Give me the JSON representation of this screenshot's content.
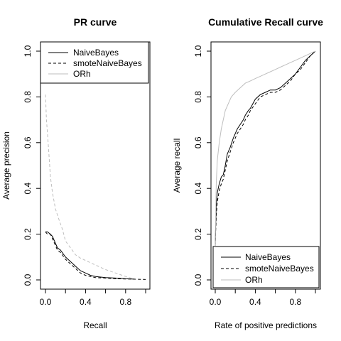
{
  "chart_data": [
    {
      "type": "line",
      "title": "PR curve",
      "xlabel": "Recall",
      "ylabel": "Average precision",
      "xlim": [
        0,
        1
      ],
      "ylim": [
        0,
        1
      ],
      "xticks": [
        "0.0",
        "0.4",
        "0.8"
      ],
      "yticks": [
        "0.0",
        "0.2",
        "0.4",
        "0.6",
        "0.8",
        "1.0"
      ],
      "grid": false,
      "legend_position": "top",
      "series": [
        {
          "name": "NaiveBayes",
          "color": "#000000",
          "dash": "solid",
          "x": [
            0.0,
            0.02,
            0.05,
            0.07,
            0.09,
            0.1,
            0.12,
            0.15,
            0.2,
            0.25,
            0.3,
            0.35,
            0.4,
            0.45,
            0.5,
            0.6,
            0.7,
            0.8,
            0.9
          ],
          "y": [
            0.21,
            0.21,
            0.2,
            0.19,
            0.17,
            0.16,
            0.14,
            0.13,
            0.1,
            0.08,
            0.06,
            0.04,
            0.03,
            0.02,
            0.015,
            0.01,
            0.008,
            0.005,
            0.003
          ]
        },
        {
          "name": "smoteNaiveBayes",
          "color": "#000000",
          "dash": "dashed",
          "x": [
            0.0,
            0.02,
            0.05,
            0.07,
            0.1,
            0.12,
            0.15,
            0.2,
            0.25,
            0.3,
            0.35,
            0.4,
            0.45,
            0.5,
            0.6,
            0.7,
            0.8,
            0.9,
            1.0
          ],
          "y": [
            0.21,
            0.2,
            0.2,
            0.18,
            0.15,
            0.13,
            0.12,
            0.09,
            0.07,
            0.05,
            0.03,
            0.02,
            0.015,
            0.01,
            0.008,
            0.005,
            0.004,
            0.003,
            0.002
          ]
        },
        {
          "name": "ORh",
          "color": "#bebebe",
          "dash": "dashed",
          "x": [
            0.0,
            0.01,
            0.03,
            0.05,
            0.07,
            0.1,
            0.13,
            0.17,
            0.2,
            0.25,
            0.3,
            0.35,
            0.4,
            0.45,
            0.5,
            0.6,
            0.7,
            0.8,
            0.85,
            0.9
          ],
          "y": [
            0.81,
            0.7,
            0.58,
            0.45,
            0.38,
            0.31,
            0.27,
            0.22,
            0.17,
            0.14,
            0.11,
            0.095,
            0.085,
            0.075,
            0.065,
            0.045,
            0.03,
            0.015,
            0.008,
            0.005
          ]
        }
      ]
    },
    {
      "type": "line",
      "title": "Cumulative Recall curve",
      "xlabel": "Rate of positive predictions",
      "ylabel": "Average recall",
      "xlim": [
        0,
        1
      ],
      "ylim": [
        0,
        1
      ],
      "xticks": [
        "0.0",
        "0.4",
        "0.8"
      ],
      "yticks": [
        "0.0",
        "0.2",
        "0.4",
        "0.6",
        "0.8",
        "1.0"
      ],
      "grid": false,
      "legend_position": "bottom",
      "series": [
        {
          "name": "NaiveBayes",
          "color": "#000000",
          "dash": "solid",
          "x": [
            0.0,
            0.005,
            0.01,
            0.02,
            0.04,
            0.06,
            0.08,
            0.1,
            0.12,
            0.15,
            0.18,
            0.2,
            0.22,
            0.25,
            0.28,
            0.3,
            0.33,
            0.35,
            0.4,
            0.45,
            0.5,
            0.55,
            0.6,
            0.65,
            0.7,
            0.75,
            0.8,
            0.85,
            0.9,
            0.95,
            1.0
          ],
          "y": [
            0.15,
            0.25,
            0.32,
            0.38,
            0.42,
            0.45,
            0.46,
            0.5,
            0.55,
            0.58,
            0.62,
            0.64,
            0.66,
            0.68,
            0.7,
            0.72,
            0.74,
            0.75,
            0.79,
            0.81,
            0.82,
            0.83,
            0.83,
            0.84,
            0.86,
            0.88,
            0.9,
            0.93,
            0.96,
            0.98,
            1.0
          ]
        },
        {
          "name": "smoteNaiveBayes",
          "color": "#000000",
          "dash": "dashed",
          "x": [
            0.0,
            0.005,
            0.01,
            0.02,
            0.04,
            0.06,
            0.08,
            0.1,
            0.12,
            0.15,
            0.18,
            0.2,
            0.22,
            0.25,
            0.28,
            0.3,
            0.33,
            0.35,
            0.4,
            0.45,
            0.5,
            0.55,
            0.6,
            0.65,
            0.7,
            0.75,
            0.8,
            0.85,
            0.9,
            0.95,
            1.0
          ],
          "y": [
            0.15,
            0.22,
            0.28,
            0.34,
            0.39,
            0.42,
            0.44,
            0.48,
            0.52,
            0.56,
            0.6,
            0.62,
            0.64,
            0.66,
            0.68,
            0.7,
            0.72,
            0.74,
            0.77,
            0.8,
            0.81,
            0.82,
            0.82,
            0.83,
            0.85,
            0.87,
            0.9,
            0.92,
            0.95,
            0.98,
            1.0
          ]
        },
        {
          "name": "ORh",
          "color": "#bebebe",
          "dash": "solid",
          "x": [
            0.0,
            0.005,
            0.01,
            0.02,
            0.04,
            0.06,
            0.08,
            0.1,
            0.13,
            0.16,
            0.2,
            0.25,
            0.3,
            0.35,
            0.4,
            0.45,
            0.5,
            0.55,
            0.6,
            0.65,
            0.7,
            0.75,
            0.8,
            0.85,
            0.9,
            0.95,
            1.0
          ],
          "y": [
            0.15,
            0.3,
            0.42,
            0.52,
            0.6,
            0.66,
            0.7,
            0.74,
            0.77,
            0.8,
            0.82,
            0.84,
            0.86,
            0.87,
            0.88,
            0.89,
            0.9,
            0.91,
            0.92,
            0.93,
            0.94,
            0.95,
            0.96,
            0.97,
            0.98,
            0.99,
            1.0
          ]
        }
      ]
    }
  ]
}
